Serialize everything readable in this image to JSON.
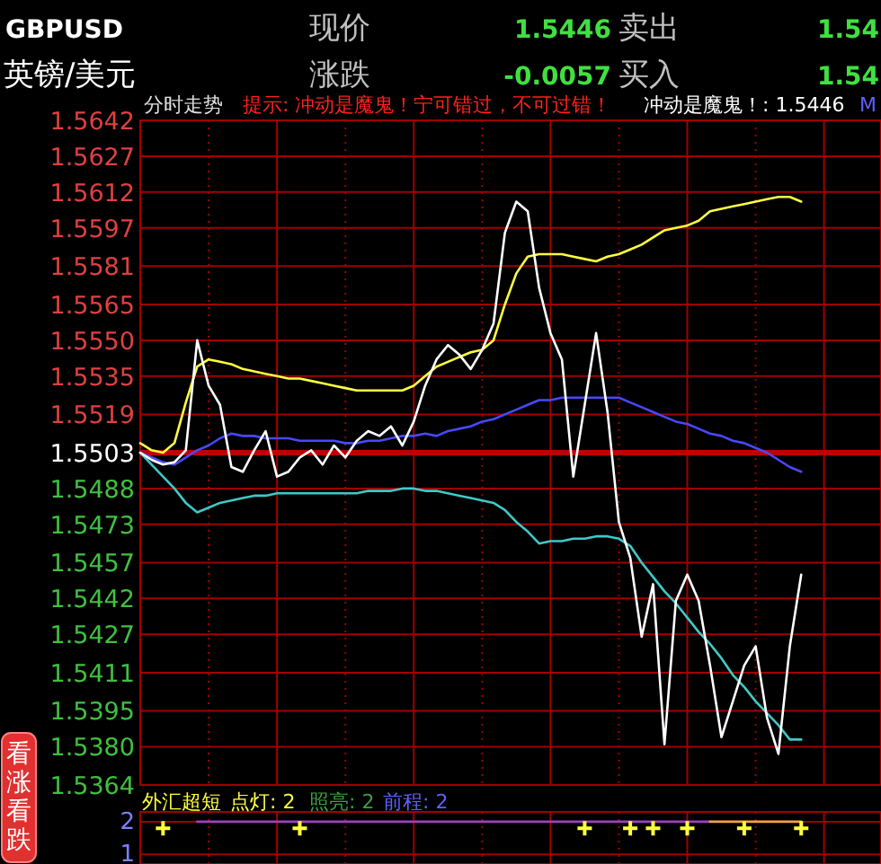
{
  "chart_data": [
    {
      "type": "other",
      "annotations": [
        "GBPUSD",
        "英镑/美元",
        "现价",
        "1.5446",
        "卖出",
        "1.54",
        "涨跌",
        "-0.0057",
        "买入",
        "1.54",
        "看涨看跌"
      ]
    },
    {
      "type": "line",
      "title": "分时走势",
      "annotations": [
        "提示: 冲动是魔鬼！宁可错过，不可过错！",
        "冲动是魔鬼！: 1.5446",
        "M"
      ],
      "categories": [
        null,
        null,
        null,
        null,
        null,
        null,
        null,
        null,
        null,
        null,
        null,
        null,
        null,
        null,
        null,
        null,
        null,
        null,
        null,
        null,
        null,
        null,
        null,
        null,
        null,
        null,
        null,
        null,
        null,
        null,
        null,
        null,
        null,
        null,
        null,
        null,
        null,
        null,
        null,
        null,
        null,
        null,
        null,
        null,
        null,
        null,
        null,
        null,
        null,
        null,
        null,
        null,
        null,
        null,
        null,
        null,
        null,
        null,
        null,
        null,
        null,
        null,
        null,
        null,
        null
      ],
      "ylim": [
        1.5364,
        1.5642
      ],
      "yticks": [
        1.5642,
        1.5627,
        1.5612,
        1.5597,
        1.5581,
        1.5565,
        {
          "value": 1.555,
          "label": "1.5550"
        },
        1.5535,
        1.5519,
        1.5503,
        1.5488,
        1.5473,
        1.5457,
        1.5442,
        1.5427,
        1.5411,
        1.5395,
        {
          "value": 1.538,
          "label": "1.5380"
        },
        1.5364
      ],
      "grid": true,
      "ref_lines": [
        {
          "axis": "y",
          "value": 1.5503,
          "label": null,
          "color": "#c00000"
        }
      ],
      "series": [
        {
          "color": "#ffff40",
          "values": [
            1.5507,
            1.5504,
            1.5503,
            1.5507,
            1.5524,
            1.5539,
            1.5542,
            1.5541,
            1.554,
            1.5538,
            1.5537,
            1.5536,
            1.5535,
            1.5534,
            1.5534,
            1.5533,
            1.5532,
            1.5531,
            1.553,
            1.5529,
            1.5529,
            1.5529,
            1.5529,
            1.5529,
            1.5531,
            1.5535,
            1.5539,
            1.5541,
            1.5543,
            1.5545,
            1.5546,
            1.555,
            1.5565,
            1.5578,
            1.5585,
            1.5586,
            1.5586,
            1.5586,
            1.5585,
            1.5584,
            1.5583,
            1.5585,
            1.5586,
            1.5588,
            1.559,
            1.5593,
            1.5596,
            1.5597,
            1.5598,
            1.56,
            1.5604,
            1.5605,
            1.5606,
            1.5607,
            1.5608,
            1.5609,
            1.561,
            1.561,
            1.5608,
            null,
            null,
            null,
            null,
            null,
            null
          ]
        },
        {
          "color": "#4848ff",
          "values": [
            1.5503,
            1.5501,
            1.5499,
            1.5498,
            1.5501,
            1.5504,
            1.5506,
            1.5509,
            1.5511,
            1.551,
            1.551,
            1.5509,
            1.5509,
            1.5509,
            1.5508,
            1.5508,
            1.5508,
            1.5508,
            1.5507,
            1.5507,
            1.5508,
            1.5508,
            1.5509,
            1.551,
            1.551,
            1.5511,
            1.551,
            1.5512,
            1.5513,
            1.5514,
            1.5516,
            1.5517,
            1.5519,
            1.5521,
            1.5523,
            1.5525,
            1.5525,
            1.5526,
            1.5526,
            1.5526,
            1.5526,
            1.5526,
            1.5526,
            1.5524,
            1.5522,
            1.552,
            1.5518,
            1.5516,
            1.5515,
            1.5513,
            1.5511,
            1.551,
            1.5508,
            1.5507,
            1.5505,
            1.5503,
            1.55,
            1.5497,
            1.5495,
            null,
            null,
            null,
            null,
            null,
            null
          ]
        },
        {
          "color": "#40c8c8",
          "values": [
            1.5503,
            1.5498,
            1.5493,
            1.5488,
            1.5482,
            1.5478,
            1.548,
            1.5482,
            1.5483,
            1.5484,
            1.5485,
            1.5485,
            1.5486,
            1.5486,
            1.5486,
            1.5486,
            1.5486,
            1.5486,
            1.5486,
            1.5486,
            1.5487,
            1.5487,
            1.5487,
            1.5488,
            1.5488,
            1.5487,
            1.5487,
            1.5486,
            1.5485,
            1.5484,
            1.5483,
            1.5482,
            1.5479,
            1.5474,
            1.547,
            1.5465,
            1.5466,
            1.5466,
            1.5467,
            1.5467,
            1.5468,
            1.5468,
            1.5467,
            1.5464,
            1.5457,
            1.5451,
            1.5445,
            1.544,
            1.5434,
            1.5428,
            1.5423,
            1.5417,
            1.541,
            1.5405,
            1.5399,
            1.5394,
            1.5389,
            1.5383,
            1.5383,
            null,
            null,
            null,
            null,
            null,
            null
          ]
        },
        {
          "color": "#ffffff",
          "values": [
            1.5503,
            1.55,
            1.5498,
            1.5499,
            1.5504,
            1.555,
            1.5531,
            1.5523,
            1.5497,
            1.5495,
            1.5504,
            1.5512,
            1.5493,
            1.5495,
            1.5501,
            1.5504,
            1.5498,
            1.5506,
            1.5501,
            1.5508,
            1.5512,
            1.551,
            1.5514,
            1.5506,
            1.5516,
            1.5531,
            1.5542,
            1.5548,
            1.5544,
            1.5538,
            1.5546,
            1.5557,
            1.5595,
            1.5608,
            1.5604,
            1.5572,
            1.5553,
            1.5542,
            1.5493,
            1.5523,
            1.5553,
            1.552,
            1.5474,
            1.5459,
            1.5426,
            1.5448,
            1.5381,
            1.5441,
            1.5452,
            1.5441,
            1.5414,
            1.5384,
            1.5399,
            1.5414,
            1.5422,
            1.5392,
            1.5377,
            1.5422,
            1.5452,
            null,
            null,
            null,
            null,
            null,
            null
          ]
        }
      ]
    },
    {
      "type": "line",
      "annotations": [
        "外汇超短",
        "点灯: 2",
        "照亮: 2",
        "前程: 2"
      ],
      "categories": [
        null,
        null,
        null,
        null,
        null,
        null,
        null,
        null,
        null,
        null,
        null,
        null,
        null,
        null,
        null,
        null,
        null,
        null,
        null,
        null,
        null,
        null,
        null,
        null,
        null,
        null,
        null,
        null,
        null,
        null,
        null,
        null,
        null,
        null,
        null,
        null,
        null,
        null,
        null,
        null,
        null,
        null,
        null,
        null,
        null,
        null,
        null,
        null,
        null,
        null,
        null,
        null,
        null,
        null,
        null,
        null,
        null,
        null,
        null,
        null,
        null,
        null,
        null,
        null,
        null
      ],
      "ylim": [
        0.7,
        2.3
      ],
      "yticks": [
        2,
        1
      ],
      "grid": true,
      "series": [
        {
          "color": "#a040c0",
          "values": [
            null,
            null,
            null,
            null,
            null,
            2,
            2,
            2,
            2,
            2,
            2,
            2,
            2,
            2,
            2,
            2,
            2,
            2,
            2,
            2,
            2,
            2,
            2,
            2,
            2,
            2,
            2,
            2,
            2,
            2,
            2,
            2,
            2,
            2,
            2,
            2,
            2,
            2,
            2,
            2,
            2,
            2,
            2,
            2,
            2,
            2,
            2,
            2,
            2,
            2,
            2,
            null,
            null,
            null,
            null,
            null,
            null,
            null,
            null,
            null,
            null,
            null,
            null,
            null,
            null
          ]
        },
        {
          "color": "#ffa040",
          "values": [
            null,
            null,
            null,
            null,
            null,
            null,
            null,
            null,
            null,
            null,
            null,
            null,
            null,
            null,
            null,
            null,
            null,
            null,
            null,
            null,
            null,
            null,
            null,
            null,
            null,
            null,
            null,
            null,
            null,
            null,
            null,
            null,
            null,
            null,
            null,
            null,
            null,
            null,
            null,
            null,
            null,
            null,
            null,
            null,
            null,
            null,
            null,
            null,
            null,
            null,
            2,
            2,
            2,
            2,
            2,
            2,
            2,
            2,
            2,
            null,
            null,
            null,
            null,
            null,
            null
          ]
        },
        {
          "type": "scatter",
          "marker": "cross",
          "color": "#ffff40",
          "values": [
            null,
            null,
            1.8,
            null,
            null,
            null,
            null,
            null,
            null,
            null,
            null,
            null,
            null,
            null,
            1.8,
            null,
            null,
            null,
            null,
            null,
            null,
            null,
            null,
            null,
            null,
            null,
            null,
            null,
            null,
            null,
            null,
            null,
            null,
            null,
            null,
            null,
            null,
            null,
            null,
            1.8,
            null,
            null,
            null,
            1.8,
            null,
            1.8,
            null,
            null,
            1.8,
            null,
            null,
            null,
            null,
            1.8,
            null,
            null,
            null,
            null,
            1.8,
            null,
            null,
            null,
            null,
            null,
            null
          ]
        }
      ]
    }
  ]
}
